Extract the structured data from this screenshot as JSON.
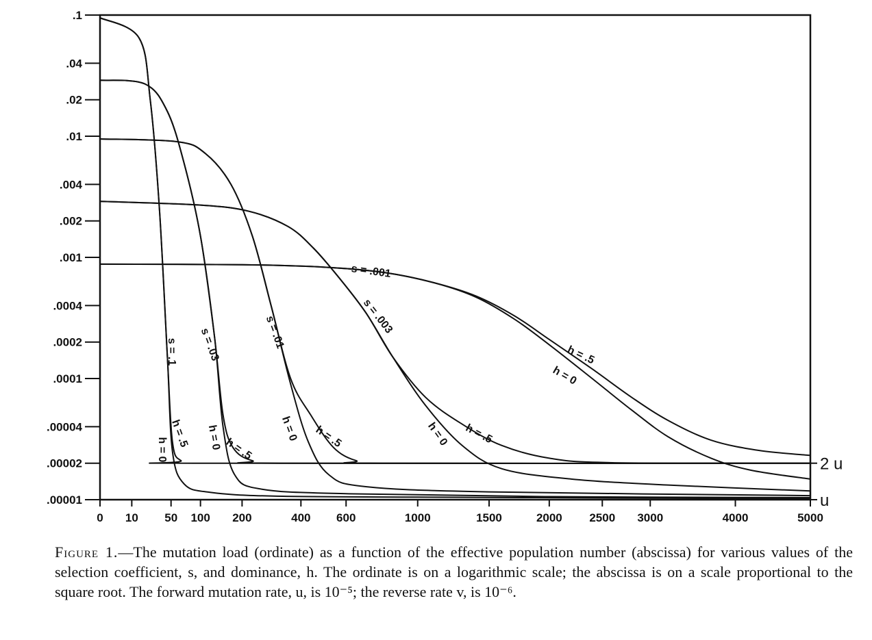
{
  "chart_data": {
    "type": "line",
    "title": "",
    "xlabel": "",
    "ylabel": "",
    "x_scale": "sqrt",
    "y_scale": "log",
    "xlim": [
      0,
      5000
    ],
    "ylim": [
      1e-05,
      0.1
    ],
    "x_ticks": [
      {
        "value": 0,
        "label": "0"
      },
      {
        "value": 10,
        "label": "10"
      },
      {
        "value": 50,
        "label": "50"
      },
      {
        "value": 100,
        "label": "100"
      },
      {
        "value": 200,
        "label": "200"
      },
      {
        "value": 400,
        "label": "400"
      },
      {
        "value": 600,
        "label": "600"
      },
      {
        "value": 1000,
        "label": "1000"
      },
      {
        "value": 1500,
        "label": "1500"
      },
      {
        "value": 2000,
        "label": "2000"
      },
      {
        "value": 2500,
        "label": "2500"
      },
      {
        "value": 3000,
        "label": "3000"
      },
      {
        "value": 4000,
        "label": "4000"
      },
      {
        "value": 5000,
        "label": "5000"
      }
    ],
    "y_ticks": [
      {
        "value": 0.1,
        "label": ".1"
      },
      {
        "value": 0.04,
        "label": ".04"
      },
      {
        "value": 0.02,
        "label": ".02"
      },
      {
        "value": 0.01,
        "label": ".01"
      },
      {
        "value": 0.004,
        "label": ".004"
      },
      {
        "value": 0.002,
        "label": ".002"
      },
      {
        "value": 0.001,
        "label": ".001"
      },
      {
        "value": 0.0004,
        "label": ".0004"
      },
      {
        "value": 0.0002,
        "label": ".0002"
      },
      {
        "value": 0.0001,
        "label": ".0001"
      },
      {
        "value": 4e-05,
        "label": ".00004"
      },
      {
        "value": 2e-05,
        "label": ".00002"
      },
      {
        "value": 1e-05,
        "label": ".00001"
      }
    ],
    "right_labels": [
      {
        "value": 2e-05,
        "label": "2 u"
      },
      {
        "value": 1e-05,
        "label": "u"
      }
    ],
    "series": [
      {
        "s": "s = .1",
        "h": "h = 0",
        "points": [
          [
            0,
            0.095
          ],
          [
            15,
            0.065
          ],
          [
            25,
            0.02
          ],
          [
            35,
            0.0025
          ],
          [
            45,
            0.00015
          ],
          [
            52,
            2.5e-05
          ],
          [
            70,
            1.35e-05
          ],
          [
            120,
            1.15e-05
          ],
          [
            300,
            1.07e-05
          ],
          [
            1000,
            1.05e-05
          ],
          [
            3000,
            1.03e-05
          ],
          [
            5000,
            1.02e-05
          ]
        ]
      },
      {
        "s": "s = .1",
        "h": "h = .5",
        "points": [
          [
            0,
            0.095
          ],
          [
            15,
            0.065
          ],
          [
            25,
            0.02
          ],
          [
            35,
            0.0025
          ],
          [
            45,
            0.00015
          ],
          [
            52,
            3e-05
          ],
          [
            65,
            2.1e-05
          ],
          [
            100,
            2e-05
          ],
          [
            5000,
            2e-05
          ]
        ]
      },
      {
        "s": "s = .03",
        "h": "h = 0",
        "points": [
          [
            0,
            0.029
          ],
          [
            20,
            0.027
          ],
          [
            45,
            0.016
          ],
          [
            70,
            0.006
          ],
          [
            100,
            0.0015
          ],
          [
            130,
            0.00022
          ],
          [
            150,
            4e-05
          ],
          [
            180,
            1.6e-05
          ],
          [
            260,
            1.22e-05
          ],
          [
            600,
            1.12e-05
          ],
          [
            2000,
            1.06e-05
          ],
          [
            5000,
            1.04e-05
          ]
        ]
      },
      {
        "s": "s = .03",
        "h": "h = .5",
        "points": [
          [
            0,
            0.029
          ],
          [
            20,
            0.027
          ],
          [
            45,
            0.016
          ],
          [
            70,
            0.006
          ],
          [
            100,
            0.0015
          ],
          [
            130,
            0.00022
          ],
          [
            150,
            5e-05
          ],
          [
            175,
            2.7e-05
          ],
          [
            230,
            2.1e-05
          ],
          [
            350,
            2e-05
          ],
          [
            5000,
            2e-05
          ]
        ]
      },
      {
        "s": "s = .01",
        "h": "h = 0",
        "points": [
          [
            0,
            0.0095
          ],
          [
            60,
            0.009
          ],
          [
            110,
            0.0072
          ],
          [
            170,
            0.004
          ],
          [
            230,
            0.0015
          ],
          [
            290,
            0.0004
          ],
          [
            360,
            9e-05
          ],
          [
            430,
            3e-05
          ],
          [
            520,
            1.6e-05
          ],
          [
            700,
            1.28e-05
          ],
          [
            1500,
            1.16e-05
          ],
          [
            5000,
            1.08e-05
          ]
        ]
      },
      {
        "s": "s = .01",
        "h": "h = .5",
        "points": [
          [
            0,
            0.0095
          ],
          [
            60,
            0.009
          ],
          [
            110,
            0.0072
          ],
          [
            170,
            0.004
          ],
          [
            230,
            0.0015
          ],
          [
            290,
            0.0004
          ],
          [
            360,
            0.0001
          ],
          [
            440,
            5e-05
          ],
          [
            540,
            2.7e-05
          ],
          [
            650,
            2.1e-05
          ],
          [
            800,
            2e-05
          ],
          [
            5000,
            2e-05
          ]
        ]
      },
      {
        "s": "s = .003",
        "h": "h = 0",
        "points": [
          [
            0,
            0.0029
          ],
          [
            100,
            0.0027
          ],
          [
            220,
            0.0024
          ],
          [
            350,
            0.0018
          ],
          [
            450,
            0.0012
          ],
          [
            560,
            0.0007
          ],
          [
            700,
            0.00035
          ],
          [
            850,
            0.00015
          ],
          [
            1050,
            6e-05
          ],
          [
            1300,
            2.8e-05
          ],
          [
            1600,
            1.8e-05
          ],
          [
            2200,
            1.48e-05
          ],
          [
            3200,
            1.32e-05
          ],
          [
            5000,
            1.18e-05
          ]
        ]
      },
      {
        "s": "s = .003",
        "h": "h = .5",
        "points": [
          [
            0,
            0.0029
          ],
          [
            100,
            0.0027
          ],
          [
            220,
            0.0024
          ],
          [
            350,
            0.0018
          ],
          [
            450,
            0.0012
          ],
          [
            560,
            0.0007
          ],
          [
            700,
            0.00035
          ],
          [
            850,
            0.00015
          ],
          [
            1050,
            7e-05
          ],
          [
            1300,
            4.2e-05
          ],
          [
            1600,
            2.8e-05
          ],
          [
            2000,
            2.2e-05
          ],
          [
            2600,
            2.02e-05
          ],
          [
            5000,
            2e-05
          ]
        ]
      },
      {
        "s": "s = .001",
        "h": "h = 0",
        "points": [
          [
            0,
            0.00088
          ],
          [
            200,
            0.00087
          ],
          [
            500,
            0.00083
          ],
          [
            800,
            0.00075
          ],
          [
            1100,
            0.00062
          ],
          [
            1400,
            0.00047
          ],
          [
            1700,
            0.00031
          ],
          [
            2000,
            0.00019
          ],
          [
            2400,
            0.0001
          ],
          [
            2800,
            5.5e-05
          ],
          [
            3200,
            3.3e-05
          ],
          [
            3700,
            2.2e-05
          ],
          [
            4200,
            1.75e-05
          ],
          [
            5000,
            1.48e-05
          ]
        ]
      },
      {
        "s": "s = .001",
        "h": "h = .5",
        "points": [
          [
            0,
            0.00088
          ],
          [
            200,
            0.00087
          ],
          [
            500,
            0.00083
          ],
          [
            800,
            0.00075
          ],
          [
            1100,
            0.00062
          ],
          [
            1400,
            0.00048
          ],
          [
            1700,
            0.00033
          ],
          [
            2000,
            0.00021
          ],
          [
            2400,
            0.00012
          ],
          [
            2800,
            7e-05
          ],
          [
            3200,
            4.5e-05
          ],
          [
            3700,
            3.1e-05
          ],
          [
            4300,
            2.55e-05
          ],
          [
            5000,
            2.32e-05
          ]
        ]
      }
    ],
    "curve_labels": [
      "s = .1",
      "s = .03",
      "s = .01",
      "s = .003",
      "s = .001",
      "h = 0",
      "h = .5"
    ]
  },
  "caption": {
    "figure_label": "Figure 1.",
    "text": "—The mutation load (ordinate) as a function of the effective population number (abscissa) for various values of the selection coefficient, s, and dominance, h. The ordinate is on a logarithmic scale; the abscissa is on a scale proportional to the square root. The forward mutation rate, u, is 10⁻⁵; the reverse rate v, is 10⁻⁶."
  }
}
